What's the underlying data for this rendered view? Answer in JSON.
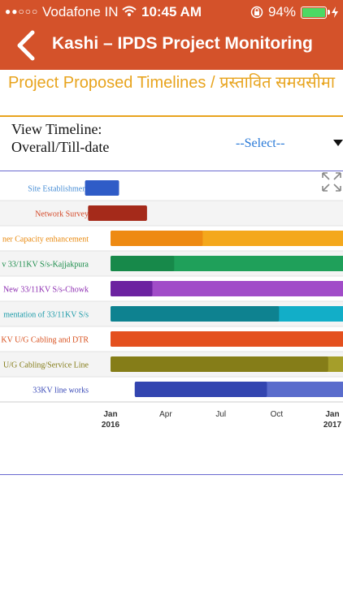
{
  "status_bar": {
    "signal": "●●○○○",
    "carrier": "Vodafone IN",
    "time": "10:45 AM",
    "battery": "94%",
    "battery_level": 0.94
  },
  "nav": {
    "title": "Kashi – IPDS Project Monitoring",
    "back_icon": "chevron-left-icon"
  },
  "page": {
    "title": "Project Proposed Timelines / प्रस्तावित समयसीमा"
  },
  "filter": {
    "label": "View Timeline: Overall/Till-date",
    "select_value": "--Select--"
  },
  "colors": {
    "header": "#d4522a",
    "title": "#e8a41e",
    "select": "#2a7ad8"
  },
  "chart_data": {
    "type": "gantt",
    "x_ticks": [
      {
        "date": "2016-01-01",
        "label": "Jan",
        "sublabel": "2016"
      },
      {
        "date": "2016-04-01",
        "label": "Apr",
        "sublabel": ""
      },
      {
        "date": "2016-07-01",
        "label": "Jul",
        "sublabel": ""
      },
      {
        "date": "2016-10-01",
        "label": "Oct",
        "sublabel": ""
      },
      {
        "date": "2017-01-01",
        "label": "Jan",
        "sublabel": "2017"
      }
    ],
    "tasks": [
      {
        "label": "Site Establishment",
        "label_color": "#4a8fd6",
        "color": "#2f5cc7",
        "light": "#2f5cc7",
        "start": "2015-11-20",
        "mid": "2016-01-15",
        "end": "2016-01-15"
      },
      {
        "label": "Network Survey",
        "label_color": "#d44a2a",
        "color": "#a52a1a",
        "light": "#a52a1a",
        "start": "2015-11-25",
        "mid": "2016-03-01",
        "end": "2016-03-01"
      },
      {
        "label": "ner Capacity enhancement",
        "label_color": "#e98a10",
        "color": "#ee8a12",
        "light": "#f4a81c",
        "start": "2016-01-01",
        "mid": "2016-06-01",
        "end": "2017-03-01"
      },
      {
        "label": "v 33/11KV S/s-Kajjakpura",
        "label_color": "#1a8c4a",
        "color": "#17894a",
        "light": "#1fa05a",
        "start": "2016-01-01",
        "mid": "2016-04-15",
        "end": "2017-03-01"
      },
      {
        "label": "New 33/11KV S/s-Chowk",
        "label_color": "#8b2ab0",
        "color": "#6c22a0",
        "light": "#a14cc8",
        "start": "2016-01-01",
        "mid": "2016-03-10",
        "end": "2017-03-01"
      },
      {
        "label": "mentation of 33/11KV S/s",
        "label_color": "#1a9aa8",
        "color": "#0e8290",
        "light": "#12aec8",
        "start": "2016-01-01",
        "mid": "2016-10-05",
        "end": "2017-03-01"
      },
      {
        "label": "KV U/G Cabling and DTR",
        "label_color": "#d8501e",
        "color": "#e4501e",
        "light": "#e4501e",
        "start": "2016-01-01",
        "mid": "2017-03-01",
        "end": "2017-03-01"
      },
      {
        "label": "U/G Cabling/Service Line",
        "label_color": "#857d1a",
        "color": "#857d18",
        "light": "#a59e2a",
        "start": "2016-01-01",
        "mid": "2016-12-25",
        "end": "2017-03-01"
      },
      {
        "label": "33KV line works",
        "label_color": "#3a4ab8",
        "color": "#3345b0",
        "light": "#5a6ccc",
        "start": "2016-02-10",
        "mid": "2016-09-15",
        "end": "2017-03-01"
      }
    ]
  }
}
